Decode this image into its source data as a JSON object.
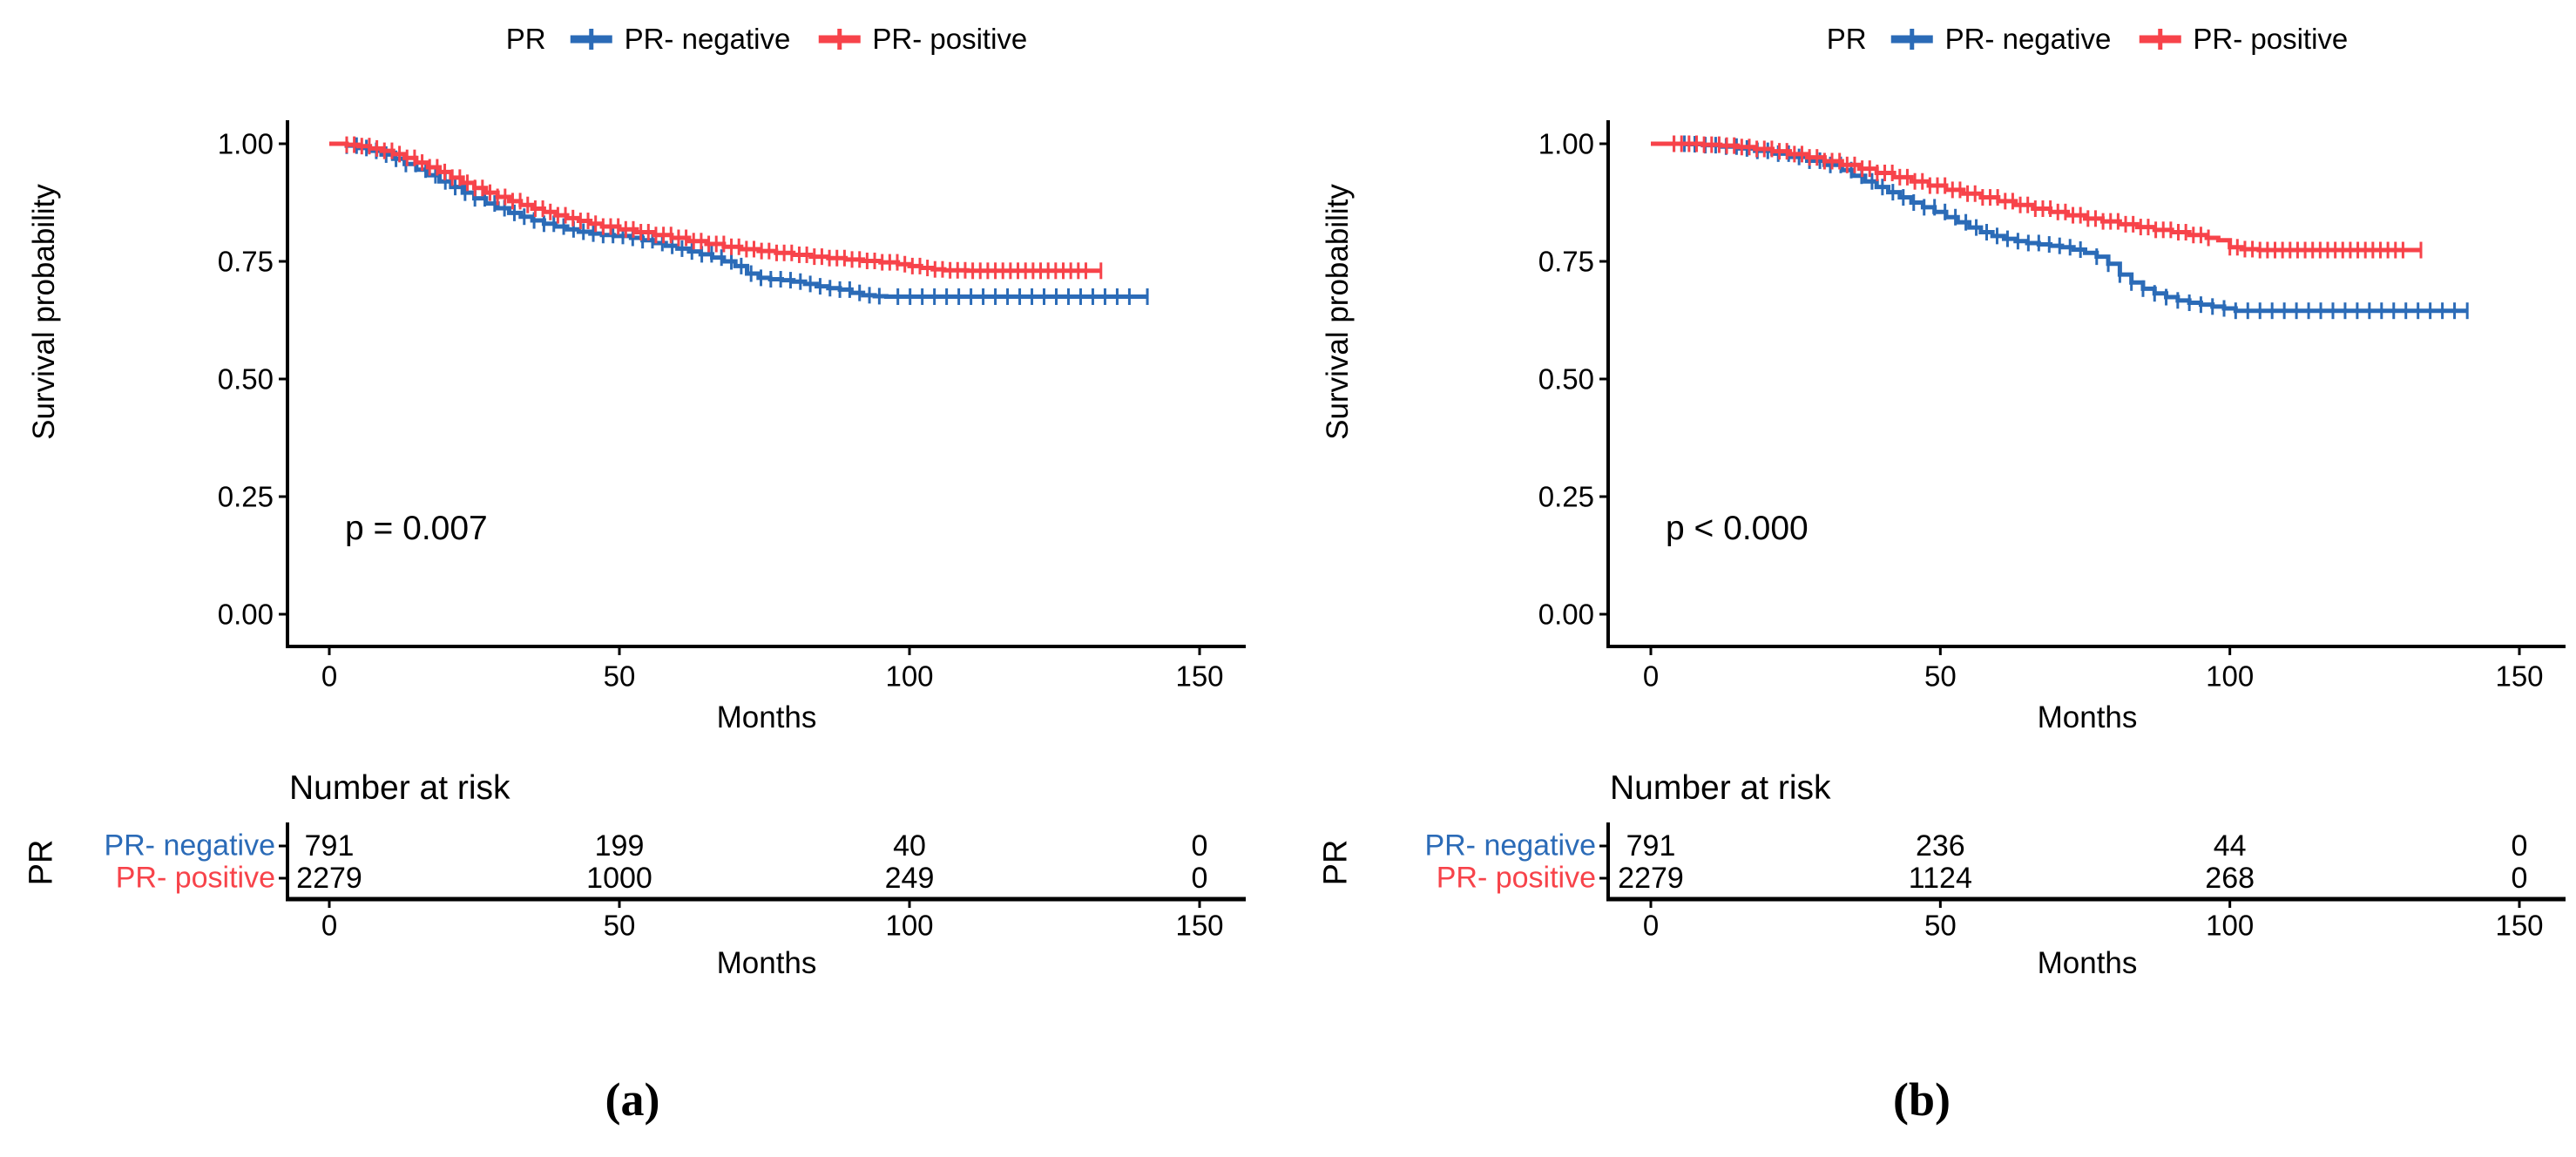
{
  "figure": {
    "caption_a": "(a)",
    "caption_b": "(b)"
  },
  "colors": {
    "negative": "#2B6BB7",
    "positive": "#F7434A",
    "axis": "#000000"
  },
  "legend": {
    "title": "PR",
    "items": [
      {
        "label": "PR- negative",
        "color_key": "negative"
      },
      {
        "label": "PR- positive",
        "color_key": "positive"
      }
    ]
  },
  "chart_data": [
    {
      "id": "a",
      "type": "line",
      "subtype": "kaplan-meier",
      "xlabel": "Months",
      "ylabel": "Survival probability",
      "p_value": "p = 0.007",
      "xlim": [
        0,
        150
      ],
      "ylim": [
        0,
        1
      ],
      "x_ticks": [
        0,
        50,
        100,
        150
      ],
      "y_ticks": [
        "1.00",
        "0.75",
        "0.50",
        "0.25",
        "0.00"
      ],
      "grid": false,
      "legend_position": "top",
      "series": [
        {
          "name": "PR- negative",
          "color_key": "negative",
          "points": [
            [
              0,
              1.0
            ],
            [
              3,
              0.996
            ],
            [
              5,
              0.991
            ],
            [
              7,
              0.985
            ],
            [
              9,
              0.977
            ],
            [
              11,
              0.968
            ],
            [
              13,
              0.957
            ],
            [
              15,
              0.945
            ],
            [
              17,
              0.933
            ],
            [
              19,
              0.92
            ],
            [
              21,
              0.908
            ],
            [
              23,
              0.896
            ],
            [
              25,
              0.884
            ],
            [
              27,
              0.873
            ],
            [
              29,
              0.863
            ],
            [
              31,
              0.853
            ],
            [
              33,
              0.845
            ],
            [
              35,
              0.837
            ],
            [
              37,
              0.83
            ],
            [
              39,
              0.824
            ],
            [
              41,
              0.818
            ],
            [
              43,
              0.813
            ],
            [
              45,
              0.809
            ],
            [
              47,
              0.806
            ],
            [
              49,
              0.804
            ],
            [
              52,
              0.8
            ],
            [
              54,
              0.795
            ],
            [
              56,
              0.789
            ],
            [
              58,
              0.783
            ],
            [
              60,
              0.777
            ],
            [
              62,
              0.771
            ],
            [
              64,
              0.765
            ],
            [
              66,
              0.758
            ],
            [
              68,
              0.75
            ],
            [
              70,
              0.74
            ],
            [
              72,
              0.724
            ],
            [
              74,
              0.715
            ],
            [
              76,
              0.712
            ],
            [
              78,
              0.71
            ],
            [
              80,
              0.707
            ],
            [
              82,
              0.702
            ],
            [
              84,
              0.697
            ],
            [
              86,
              0.693
            ],
            [
              88,
              0.69
            ],
            [
              90,
              0.683
            ],
            [
              92,
              0.678
            ],
            [
              94,
              0.676
            ],
            [
              96,
              0.675
            ],
            [
              141,
              0.675
            ]
          ],
          "censor_ranges": [
            {
              "from": 3,
              "to": 96,
              "step": 1.7
            },
            {
              "from": 98,
              "to": 138,
              "step": 2.1
            },
            {
              "from": 141,
              "to": 141,
              "step": 1
            }
          ]
        },
        {
          "name": "PR- positive",
          "color_key": "positive",
          "points": [
            [
              0,
              1.0
            ],
            [
              3,
              0.998
            ],
            [
              5,
              0.995
            ],
            [
              7,
              0.99
            ],
            [
              9,
              0.985
            ],
            [
              11,
              0.978
            ],
            [
              13,
              0.97
            ],
            [
              15,
              0.96
            ],
            [
              17,
              0.95
            ],
            [
              19,
              0.94
            ],
            [
              21,
              0.928
            ],
            [
              23,
              0.917
            ],
            [
              25,
              0.906
            ],
            [
              27,
              0.896
            ],
            [
              29,
              0.887
            ],
            [
              31,
              0.878
            ],
            [
              33,
              0.87
            ],
            [
              35,
              0.862
            ],
            [
              37,
              0.855
            ],
            [
              39,
              0.848
            ],
            [
              41,
              0.842
            ],
            [
              43,
              0.836
            ],
            [
              45,
              0.83
            ],
            [
              47,
              0.824
            ],
            [
              50,
              0.818
            ],
            [
              53,
              0.812
            ],
            [
              56,
              0.806
            ],
            [
              59,
              0.8
            ],
            [
              62,
              0.793
            ],
            [
              65,
              0.787
            ],
            [
              68,
              0.781
            ],
            [
              71,
              0.776
            ],
            [
              74,
              0.772
            ],
            [
              77,
              0.768
            ],
            [
              80,
              0.764
            ],
            [
              83,
              0.76
            ],
            [
              86,
              0.757
            ],
            [
              89,
              0.754
            ],
            [
              92,
              0.751
            ],
            [
              95,
              0.748
            ],
            [
              98,
              0.744
            ],
            [
              100,
              0.74
            ],
            [
              102,
              0.736
            ],
            [
              104,
              0.733
            ],
            [
              106,
              0.731
            ],
            [
              110,
              0.73
            ],
            [
              133,
              0.73
            ]
          ],
          "censor_ranges": [
            {
              "from": 3,
              "to": 131,
              "step": 1.3
            },
            {
              "from": 133,
              "to": 133,
              "step": 1
            }
          ]
        }
      ],
      "number_at_risk": {
        "title": "Number at risk",
        "group_label": "PR",
        "times": [
          0,
          50,
          100,
          150
        ],
        "rows": [
          {
            "label": "PR- negative",
            "color_key": "negative",
            "counts": [
              "791",
              "199",
              "40",
              "0"
            ]
          },
          {
            "label": "PR- positive",
            "color_key": "positive",
            "counts": [
              "2279",
              "1000",
              "249",
              "0"
            ]
          }
        ]
      }
    },
    {
      "id": "b",
      "type": "line",
      "subtype": "kaplan-meier",
      "xlabel": "Months",
      "ylabel": "Survival probability",
      "p_value": "p < 0.000",
      "xlim": [
        0,
        150
      ],
      "ylim": [
        0,
        1
      ],
      "x_ticks": [
        0,
        50,
        100,
        150
      ],
      "y_ticks": [
        "1.00",
        "0.75",
        "0.50",
        "0.25",
        "0.00"
      ],
      "grid": false,
      "legend_position": "top",
      "series": [
        {
          "name": "PR- negative",
          "color_key": "negative",
          "points": [
            [
              0,
              1.0
            ],
            [
              6,
              0.999
            ],
            [
              9,
              0.997
            ],
            [
              12,
              0.994
            ],
            [
              15,
              0.99
            ],
            [
              18,
              0.985
            ],
            [
              21,
              0.979
            ],
            [
              24,
              0.972
            ],
            [
              27,
              0.964
            ],
            [
              30,
              0.955
            ],
            [
              33,
              0.944
            ],
            [
              35,
              0.932
            ],
            [
              37,
              0.92
            ],
            [
              39,
              0.908
            ],
            [
              41,
              0.897
            ],
            [
              43,
              0.886
            ],
            [
              45,
              0.875
            ],
            [
              47,
              0.865
            ],
            [
              49,
              0.855
            ],
            [
              51,
              0.844
            ],
            [
              53,
              0.833
            ],
            [
              55,
              0.822
            ],
            [
              57,
              0.812
            ],
            [
              59,
              0.804
            ],
            [
              61,
              0.798
            ],
            [
              63,
              0.793
            ],
            [
              65,
              0.789
            ],
            [
              67,
              0.786
            ],
            [
              69,
              0.783
            ],
            [
              71,
              0.78
            ],
            [
              73,
              0.775
            ],
            [
              75,
              0.768
            ],
            [
              77,
              0.76
            ],
            [
              79,
              0.745
            ],
            [
              81,
              0.722
            ],
            [
              83,
              0.705
            ],
            [
              85,
              0.692
            ],
            [
              87,
              0.682
            ],
            [
              89,
              0.674
            ],
            [
              91,
              0.667
            ],
            [
              93,
              0.662
            ],
            [
              95,
              0.658
            ],
            [
              97,
              0.654
            ],
            [
              99,
              0.65
            ],
            [
              101,
              0.645
            ],
            [
              141,
              0.645
            ]
          ],
          "censor_ranges": [
            {
              "from": 4,
              "to": 75,
              "step": 1.8
            },
            {
              "from": 77,
              "to": 99,
              "step": 2.0
            },
            {
              "from": 101,
              "to": 139,
              "step": 2.1
            },
            {
              "from": 141,
              "to": 141,
              "step": 1
            }
          ]
        },
        {
          "name": "PR- positive",
          "color_key": "positive",
          "points": [
            [
              0,
              1.0
            ],
            [
              6,
              1.0
            ],
            [
              9,
              0.998
            ],
            [
              12,
              0.996
            ],
            [
              15,
              0.993
            ],
            [
              18,
              0.989
            ],
            [
              21,
              0.984
            ],
            [
              24,
              0.978
            ],
            [
              27,
              0.971
            ],
            [
              30,
              0.963
            ],
            [
              33,
              0.955
            ],
            [
              36,
              0.947
            ],
            [
              39,
              0.938
            ],
            [
              42,
              0.929
            ],
            [
              45,
              0.92
            ],
            [
              48,
              0.911
            ],
            [
              51,
              0.902
            ],
            [
              54,
              0.894
            ],
            [
              57,
              0.886
            ],
            [
              60,
              0.878
            ],
            [
              63,
              0.87
            ],
            [
              66,
              0.862
            ],
            [
              69,
              0.855
            ],
            [
              72,
              0.848
            ],
            [
              75,
              0.841
            ],
            [
              78,
              0.835
            ],
            [
              81,
              0.829
            ],
            [
              84,
              0.823
            ],
            [
              87,
              0.817
            ],
            [
              90,
              0.812
            ],
            [
              93,
              0.806
            ],
            [
              96,
              0.8
            ],
            [
              98,
              0.795
            ],
            [
              100,
              0.78
            ],
            [
              102,
              0.776
            ],
            [
              105,
              0.774
            ],
            [
              133,
              0.774
            ]
          ],
          "censor_ranges": [
            {
              "from": 4,
              "to": 97,
              "step": 1.3
            },
            {
              "from": 100,
              "to": 131,
              "step": 1.3
            },
            {
              "from": 133,
              "to": 133,
              "step": 1
            }
          ]
        }
      ],
      "number_at_risk": {
        "title": "Number at risk",
        "group_label": "PR",
        "times": [
          0,
          50,
          100,
          150
        ],
        "rows": [
          {
            "label": "PR- negative",
            "color_key": "negative",
            "counts": [
              "791",
              "236",
              "44",
              "0"
            ]
          },
          {
            "label": "PR- positive",
            "color_key": "positive",
            "counts": [
              "2279",
              "1124",
              "268",
              "0"
            ]
          }
        ]
      }
    }
  ]
}
